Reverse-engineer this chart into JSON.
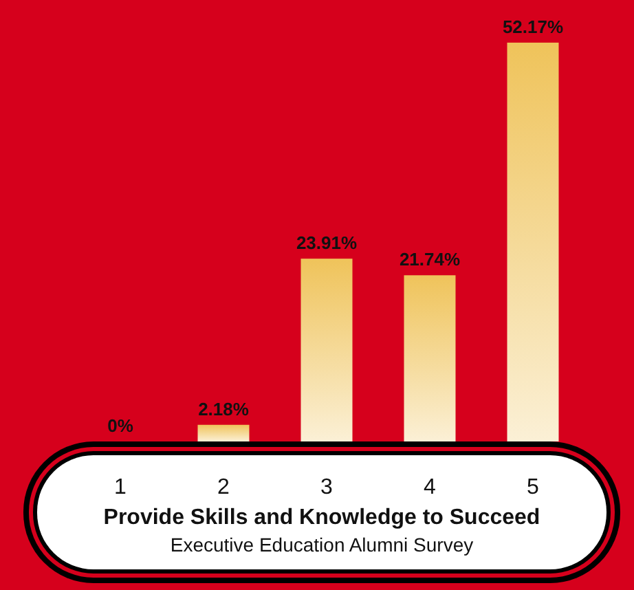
{
  "chart_data": {
    "type": "bar",
    "title": "Provide Skills and Knowledge to Succeed",
    "subtitle": "Executive Education Alumni Survey",
    "categories": [
      "1",
      "2",
      "3",
      "4",
      "5"
    ],
    "values": [
      0,
      2.18,
      23.91,
      21.74,
      52.17
    ],
    "value_labels": [
      "0%",
      "2.18%",
      "23.91%",
      "21.74%",
      "52.17%"
    ],
    "color": "#efc35a"
  }
}
